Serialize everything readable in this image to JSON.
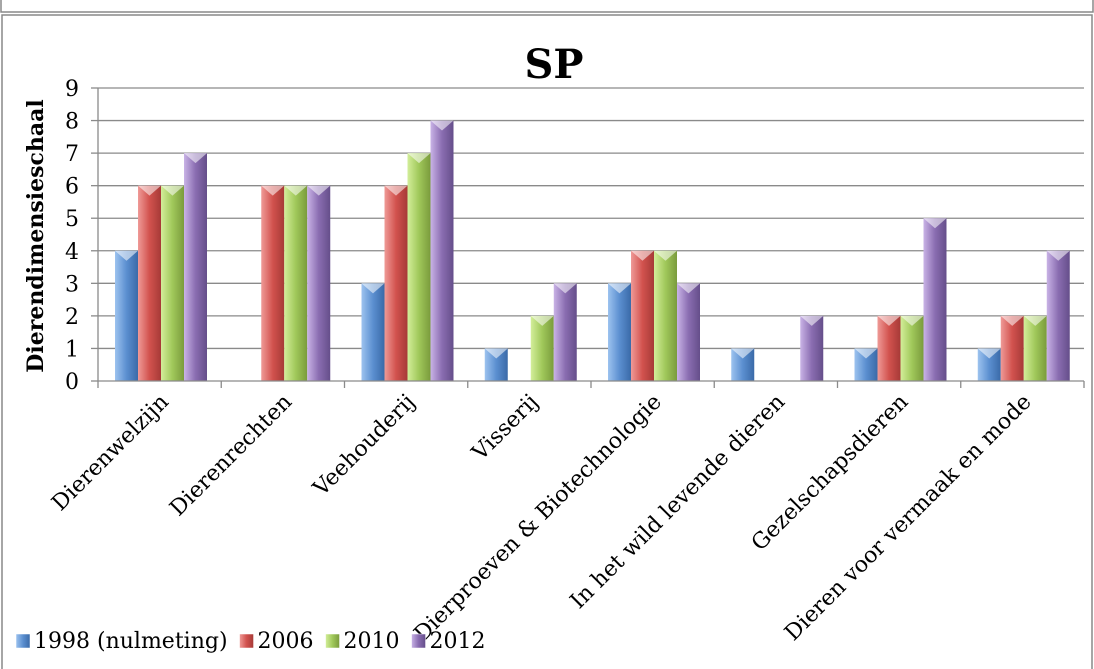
{
  "chart_data": {
    "type": "bar",
    "title": "SP",
    "xlabel": "",
    "ylabel": "Dierendimensieschaal",
    "ylim": [
      0,
      9
    ],
    "yticks": [
      0,
      1,
      2,
      3,
      4,
      5,
      6,
      7,
      8,
      9
    ],
    "grid": true,
    "legend_position": "bottom-left",
    "categories": [
      "Dierenwelzijn",
      "Dierenrechten",
      "Veehouderij",
      "Visserij",
      "Dierproeven & Biotechnologie",
      "In het wild levende dieren",
      "Gezelschapsdieren",
      "Dieren voor vermaak en mode"
    ],
    "series": [
      {
        "name": "1998 (nulmeting)",
        "color": "#4f81bd",
        "values": [
          4,
          0,
          3,
          1,
          3,
          1,
          1,
          1
        ]
      },
      {
        "name": "2006",
        "color": "#c0504d",
        "values": [
          6,
          6,
          6,
          0,
          4,
          0,
          2,
          2
        ]
      },
      {
        "name": "2010",
        "color": "#9bbb59",
        "values": [
          6,
          6,
          7,
          2,
          4,
          0,
          2,
          2
        ]
      },
      {
        "name": "2012",
        "color": "#8064a2",
        "values": [
          7,
          6,
          8,
          3,
          3,
          2,
          5,
          4
        ]
      }
    ]
  }
}
